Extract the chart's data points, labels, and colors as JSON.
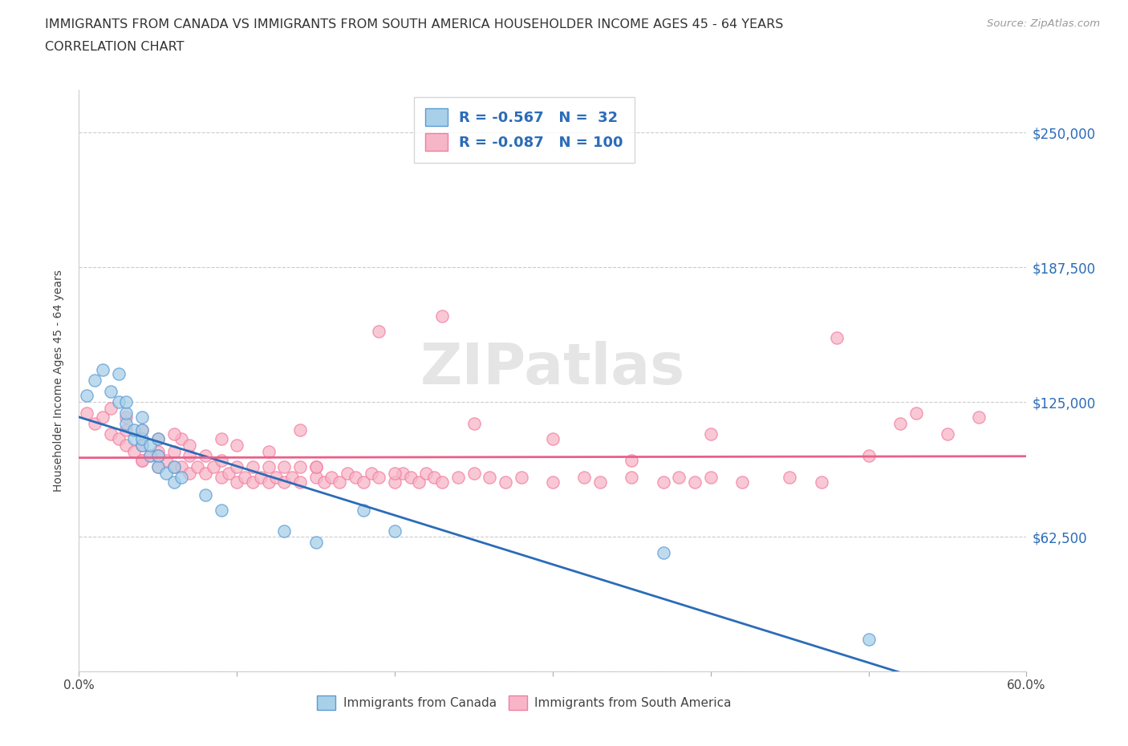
{
  "title_line1": "IMMIGRANTS FROM CANADA VS IMMIGRANTS FROM SOUTH AMERICA HOUSEHOLDER INCOME AGES 45 - 64 YEARS",
  "title_line2": "CORRELATION CHART",
  "source_text": "Source: ZipAtlas.com",
  "ylabel": "Householder Income Ages 45 - 64 years",
  "xmin": 0.0,
  "xmax": 0.6,
  "ymin": 0,
  "ymax": 270000,
  "yticks": [
    0,
    62500,
    125000,
    187500,
    250000
  ],
  "ytick_labels_right": [
    "",
    "$62,500",
    "$125,000",
    "$187,500",
    "$250,000"
  ],
  "xticks": [
    0.0,
    0.1,
    0.2,
    0.3,
    0.4,
    0.5,
    0.6
  ],
  "xtick_labels": [
    "0.0%",
    "",
    "",
    "",
    "",
    "",
    "60.0%"
  ],
  "canada_R": -0.567,
  "canada_N": 32,
  "sa_R": -0.087,
  "sa_N": 100,
  "canada_color": "#a8d0e8",
  "sa_color": "#f7b6c8",
  "canada_edge_color": "#5b9bd5",
  "sa_edge_color": "#f47ca0",
  "canada_line_color": "#2b6cb8",
  "sa_line_color": "#e8608a",
  "watermark": "ZIPatlas",
  "legend_label_color": "#2b6cb8",
  "right_tick_color": "#2b6cb8",
  "canada_scatter_x": [
    0.005,
    0.01,
    0.015,
    0.02,
    0.025,
    0.025,
    0.03,
    0.03,
    0.03,
    0.035,
    0.035,
    0.04,
    0.04,
    0.04,
    0.04,
    0.045,
    0.045,
    0.05,
    0.05,
    0.05,
    0.055,
    0.06,
    0.06,
    0.065,
    0.08,
    0.09,
    0.13,
    0.15,
    0.18,
    0.2,
    0.37,
    0.5
  ],
  "canada_scatter_y": [
    128000,
    135000,
    140000,
    130000,
    125000,
    138000,
    115000,
    120000,
    125000,
    108000,
    112000,
    105000,
    108000,
    112000,
    118000,
    100000,
    105000,
    95000,
    100000,
    108000,
    92000,
    88000,
    95000,
    90000,
    82000,
    75000,
    65000,
    60000,
    75000,
    65000,
    55000,
    15000
  ],
  "sa_scatter_x": [
    0.005,
    0.01,
    0.015,
    0.02,
    0.02,
    0.025,
    0.03,
    0.03,
    0.03,
    0.035,
    0.04,
    0.04,
    0.04,
    0.045,
    0.05,
    0.05,
    0.05,
    0.055,
    0.06,
    0.06,
    0.065,
    0.065,
    0.07,
    0.07,
    0.075,
    0.08,
    0.08,
    0.085,
    0.09,
    0.09,
    0.095,
    0.1,
    0.1,
    0.105,
    0.11,
    0.11,
    0.115,
    0.12,
    0.12,
    0.125,
    0.13,
    0.13,
    0.135,
    0.14,
    0.14,
    0.15,
    0.15,
    0.155,
    0.16,
    0.165,
    0.17,
    0.175,
    0.18,
    0.185,
    0.19,
    0.2,
    0.205,
    0.21,
    0.215,
    0.22,
    0.225,
    0.23,
    0.24,
    0.25,
    0.26,
    0.27,
    0.28,
    0.3,
    0.32,
    0.33,
    0.35,
    0.37,
    0.38,
    0.39,
    0.4,
    0.42,
    0.45,
    0.47,
    0.48,
    0.5,
    0.52,
    0.53,
    0.55,
    0.57,
    0.23,
    0.19,
    0.14,
    0.09,
    0.07,
    0.06,
    0.05,
    0.04,
    0.35,
    0.4,
    0.25,
    0.3,
    0.15,
    0.2,
    0.1,
    0.12
  ],
  "sa_scatter_y": [
    120000,
    115000,
    118000,
    110000,
    122000,
    108000,
    105000,
    112000,
    118000,
    102000,
    98000,
    105000,
    112000,
    100000,
    95000,
    102000,
    108000,
    98000,
    95000,
    102000,
    95000,
    108000,
    92000,
    100000,
    95000,
    92000,
    100000,
    95000,
    90000,
    98000,
    92000,
    88000,
    95000,
    90000,
    88000,
    95000,
    90000,
    88000,
    95000,
    90000,
    88000,
    95000,
    90000,
    88000,
    95000,
    90000,
    95000,
    88000,
    90000,
    88000,
    92000,
    90000,
    88000,
    92000,
    90000,
    88000,
    92000,
    90000,
    88000,
    92000,
    90000,
    88000,
    90000,
    92000,
    90000,
    88000,
    90000,
    88000,
    90000,
    88000,
    90000,
    88000,
    90000,
    88000,
    90000,
    88000,
    90000,
    88000,
    155000,
    100000,
    115000,
    120000,
    110000,
    118000,
    165000,
    158000,
    112000,
    108000,
    105000,
    110000,
    100000,
    98000,
    98000,
    110000,
    115000,
    108000,
    95000,
    92000,
    105000,
    102000
  ]
}
